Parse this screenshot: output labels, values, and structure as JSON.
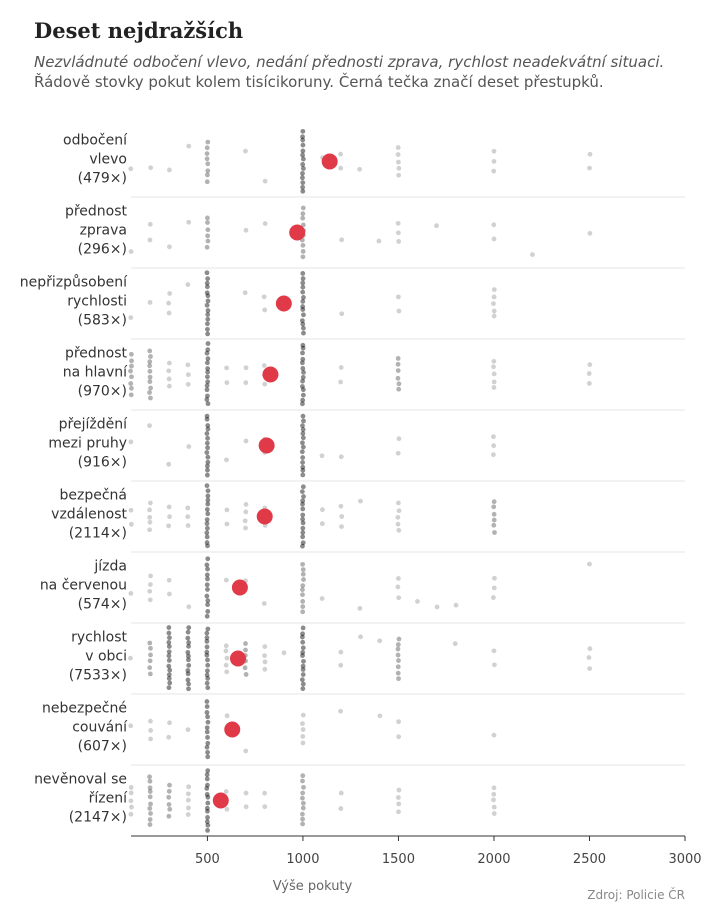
{
  "title": "Deset nejdražších",
  "subtitle_italic": "Nezvládnuté odbočení vlevo, nedání přednosti zprava, rychlost neadekvátní situaci.",
  "subtitle_rest": " Řádově stovky pokut kolem tisícikoruny. Černá tečka značí deset přestupků.",
  "source": "Zdroj: Policie ČR",
  "colors": {
    "mean": "#e03a48",
    "dot": "#000000",
    "grid": "#e4e4e4",
    "axis": "#333333"
  },
  "chart_data": {
    "type": "scatter",
    "title": "Deset nejdražších",
    "xlabel": "Výše pokuty",
    "ylabel": "",
    "xlim": [
      100,
      3000
    ],
    "xticks": [
      500,
      1000,
      1500,
      2000,
      2500,
      3000
    ],
    "xtick_labels": [
      "500",
      "1000",
      "1500",
      "2000",
      "2500",
      "3000"
    ],
    "legend": "Černá tečka značí deset přestupků",
    "categories": [
      {
        "lines": [
          "odbočení",
          "vlevo",
          "(479×)"
        ],
        "count": 479,
        "mean": 1140,
        "fines": [
          {
            "x": 100,
            "n": 1
          },
          {
            "x": 200,
            "n": 1
          },
          {
            "x": 300,
            "n": 1
          },
          {
            "x": 400,
            "n": 1
          },
          {
            "x": 500,
            "n": 8
          },
          {
            "x": 700,
            "n": 1
          },
          {
            "x": 800,
            "n": 1
          },
          {
            "x": 1000,
            "n": 14
          },
          {
            "x": 1100,
            "n": 1
          },
          {
            "x": 1200,
            "n": 2
          },
          {
            "x": 1300,
            "n": 1
          },
          {
            "x": 1500,
            "n": 5
          },
          {
            "x": 2000,
            "n": 3
          },
          {
            "x": 2500,
            "n": 2
          }
        ]
      },
      {
        "lines": [
          "přednost",
          "zprava",
          "(296×)"
        ],
        "count": 296,
        "mean": 970,
        "fines": [
          {
            "x": 100,
            "n": 1
          },
          {
            "x": 200,
            "n": 2
          },
          {
            "x": 300,
            "n": 1
          },
          {
            "x": 400,
            "n": 1
          },
          {
            "x": 500,
            "n": 6
          },
          {
            "x": 700,
            "n": 1
          },
          {
            "x": 800,
            "n": 1
          },
          {
            "x": 1000,
            "n": 10
          },
          {
            "x": 1200,
            "n": 1
          },
          {
            "x": 1400,
            "n": 1
          },
          {
            "x": 1500,
            "n": 3
          },
          {
            "x": 1700,
            "n": 1
          },
          {
            "x": 2000,
            "n": 2
          },
          {
            "x": 2200,
            "n": 1
          },
          {
            "x": 2500,
            "n": 1
          }
        ]
      },
      {
        "lines": [
          "nepřizpůsobení",
          "rychlosti",
          "(583×)"
        ],
        "count": 583,
        "mean": 900,
        "fines": [
          {
            "x": 100,
            "n": 1
          },
          {
            "x": 200,
            "n": 1
          },
          {
            "x": 300,
            "n": 3
          },
          {
            "x": 400,
            "n": 1
          },
          {
            "x": 500,
            "n": 14
          },
          {
            "x": 700,
            "n": 1
          },
          {
            "x": 800,
            "n": 2
          },
          {
            "x": 1000,
            "n": 14
          },
          {
            "x": 1200,
            "n": 1
          },
          {
            "x": 1500,
            "n": 2
          },
          {
            "x": 2000,
            "n": 5
          }
        ]
      },
      {
        "lines": [
          "přednost",
          "na hlavní",
          "(970×)"
        ],
        "count": 970,
        "mean": 830,
        "fines": [
          {
            "x": 100,
            "n": 8
          },
          {
            "x": 200,
            "n": 10
          },
          {
            "x": 300,
            "n": 4
          },
          {
            "x": 400,
            "n": 3
          },
          {
            "x": 500,
            "n": 14
          },
          {
            "x": 600,
            "n": 2
          },
          {
            "x": 700,
            "n": 2
          },
          {
            "x": 800,
            "n": 3
          },
          {
            "x": 1000,
            "n": 14
          },
          {
            "x": 1200,
            "n": 2
          },
          {
            "x": 1500,
            "n": 6
          },
          {
            "x": 2000,
            "n": 5
          },
          {
            "x": 2500,
            "n": 3
          }
        ]
      },
      {
        "lines": [
          "přejíždění",
          "mezi pruhy",
          "(916×)"
        ],
        "count": 916,
        "mean": 810,
        "fines": [
          {
            "x": 100,
            "n": 1
          },
          {
            "x": 200,
            "n": 1
          },
          {
            "x": 300,
            "n": 1
          },
          {
            "x": 400,
            "n": 1
          },
          {
            "x": 500,
            "n": 14
          },
          {
            "x": 600,
            "n": 1
          },
          {
            "x": 700,
            "n": 1
          },
          {
            "x": 800,
            "n": 2
          },
          {
            "x": 1000,
            "n": 14
          },
          {
            "x": 1100,
            "n": 1
          },
          {
            "x": 1200,
            "n": 1
          },
          {
            "x": 1500,
            "n": 2
          },
          {
            "x": 2000,
            "n": 3
          }
        ]
      },
      {
        "lines": [
          "bezpečná",
          "vzdálenost",
          "(2114×)"
        ],
        "count": 2114,
        "mean": 800,
        "fines": [
          {
            "x": 100,
            "n": 2
          },
          {
            "x": 200,
            "n": 5
          },
          {
            "x": 300,
            "n": 3
          },
          {
            "x": 400,
            "n": 3
          },
          {
            "x": 500,
            "n": 14
          },
          {
            "x": 600,
            "n": 2
          },
          {
            "x": 700,
            "n": 4
          },
          {
            "x": 800,
            "n": 3
          },
          {
            "x": 1000,
            "n": 14
          },
          {
            "x": 1100,
            "n": 2
          },
          {
            "x": 1200,
            "n": 3
          },
          {
            "x": 1300,
            "n": 1
          },
          {
            "x": 1500,
            "n": 5
          },
          {
            "x": 2000,
            "n": 6
          }
        ]
      },
      {
        "lines": [
          "jízda",
          "na červenou",
          "(574×)"
        ],
        "count": 574,
        "mean": 670,
        "fines": [
          {
            "x": 100,
            "n": 1
          },
          {
            "x": 200,
            "n": 4
          },
          {
            "x": 300,
            "n": 2
          },
          {
            "x": 400,
            "n": 1
          },
          {
            "x": 500,
            "n": 12
          },
          {
            "x": 600,
            "n": 1
          },
          {
            "x": 700,
            "n": 1
          },
          {
            "x": 800,
            "n": 1
          },
          {
            "x": 1000,
            "n": 10
          },
          {
            "x": 1100,
            "n": 1
          },
          {
            "x": 1300,
            "n": 1
          },
          {
            "x": 1500,
            "n": 3
          },
          {
            "x": 1600,
            "n": 1
          },
          {
            "x": 1700,
            "n": 1
          },
          {
            "x": 1800,
            "n": 1
          },
          {
            "x": 2000,
            "n": 3
          },
          {
            "x": 2500,
            "n": 1
          }
        ]
      },
      {
        "lines": [
          "rychlost",
          "v obci",
          "(7533×)"
        ],
        "count": 7533,
        "mean": 660,
        "fines": [
          {
            "x": 100,
            "n": 1
          },
          {
            "x": 200,
            "n": 6
          },
          {
            "x": 300,
            "n": 14
          },
          {
            "x": 400,
            "n": 14
          },
          {
            "x": 500,
            "n": 14
          },
          {
            "x": 600,
            "n": 5
          },
          {
            "x": 700,
            "n": 6
          },
          {
            "x": 800,
            "n": 4
          },
          {
            "x": 900,
            "n": 1
          },
          {
            "x": 1000,
            "n": 14
          },
          {
            "x": 1200,
            "n": 2
          },
          {
            "x": 1300,
            "n": 1
          },
          {
            "x": 1400,
            "n": 1
          },
          {
            "x": 1500,
            "n": 8
          },
          {
            "x": 1800,
            "n": 1
          },
          {
            "x": 2000,
            "n": 2
          },
          {
            "x": 2500,
            "n": 3
          }
        ]
      },
      {
        "lines": [
          "nebezpečné",
          "couvání",
          "(607×)"
        ],
        "count": 607,
        "mean": 630,
        "fines": [
          {
            "x": 100,
            "n": 1
          },
          {
            "x": 200,
            "n": 3
          },
          {
            "x": 300,
            "n": 2
          },
          {
            "x": 400,
            "n": 1
          },
          {
            "x": 500,
            "n": 12
          },
          {
            "x": 600,
            "n": 1
          },
          {
            "x": 700,
            "n": 1
          },
          {
            "x": 1000,
            "n": 5
          },
          {
            "x": 1200,
            "n": 1
          },
          {
            "x": 1400,
            "n": 1
          },
          {
            "x": 1500,
            "n": 2
          },
          {
            "x": 2000,
            "n": 1
          }
        ]
      },
      {
        "lines": [
          "nevěnoval se",
          "řízení",
          "(2147×)"
        ],
        "count": 2147,
        "mean": 570,
        "fines": [
          {
            "x": 100,
            "n": 5
          },
          {
            "x": 200,
            "n": 10
          },
          {
            "x": 300,
            "n": 6
          },
          {
            "x": 400,
            "n": 5
          },
          {
            "x": 500,
            "n": 14
          },
          {
            "x": 600,
            "n": 3
          },
          {
            "x": 700,
            "n": 2
          },
          {
            "x": 800,
            "n": 2
          },
          {
            "x": 1000,
            "n": 10
          },
          {
            "x": 1200,
            "n": 2
          },
          {
            "x": 1500,
            "n": 4
          },
          {
            "x": 2000,
            "n": 5
          }
        ]
      }
    ]
  }
}
